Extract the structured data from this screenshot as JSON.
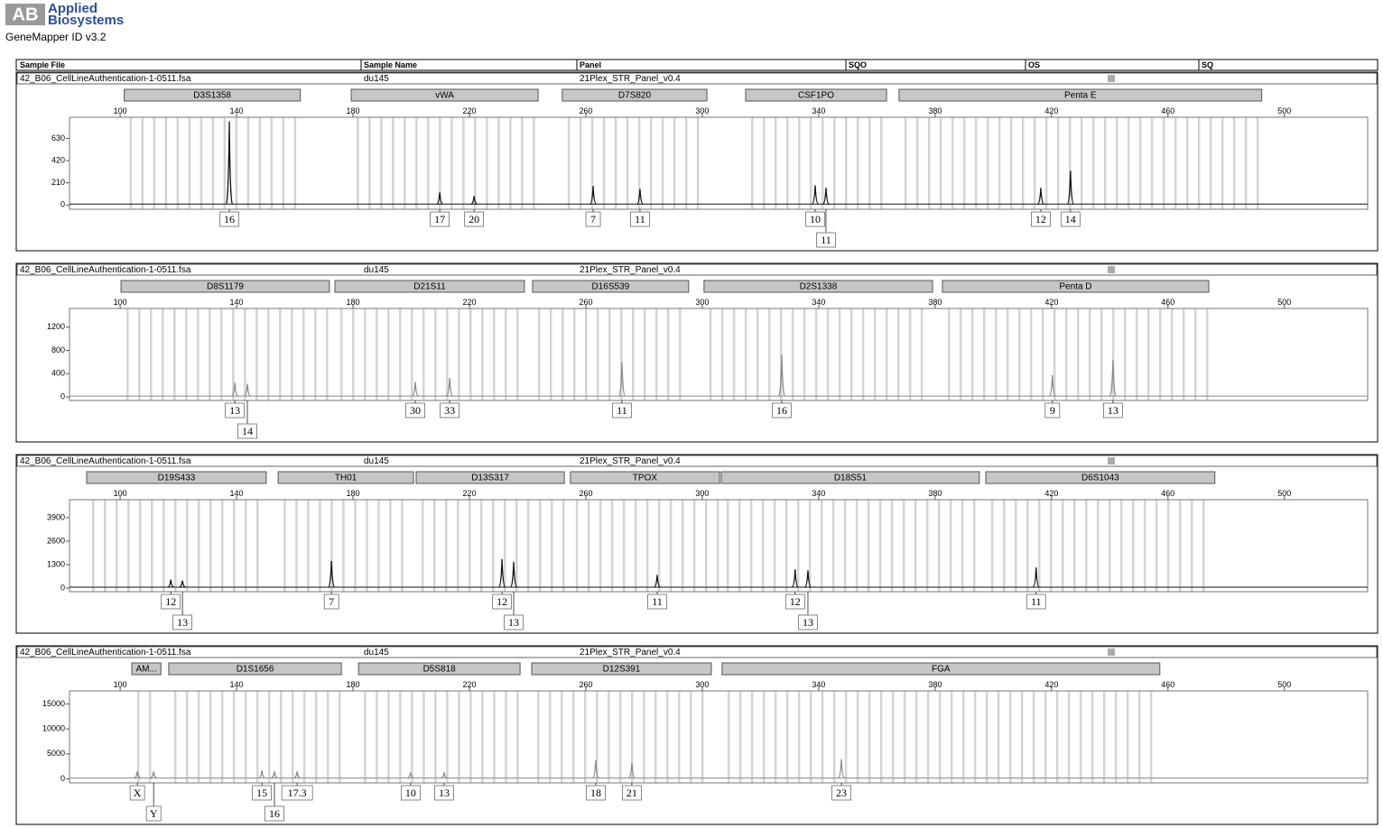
{
  "header": {
    "logo_mark": "AB",
    "logo_line1": "Applied",
    "logo_line2": "Biosystems",
    "app": "GeneMapper ID v3.2"
  },
  "columns": [
    "Sample File",
    "Sample Name",
    "Panel",
    "SQO",
    "OS",
    "SQ"
  ],
  "chart_data": [
    {
      "type": "electropherogram",
      "sample_file": "42_B06_CellLineAuthentication-1-0511.fsa",
      "sample_name": "du145",
      "panel": "21Plex_STR_Panel_v0.4",
      "color": "#111111",
      "markers": [
        {
          "name": "D3S1358",
          "range": [
            101.4,
            161.9
          ]
        },
        {
          "name": "vWA",
          "range": [
            179.4,
            243.6
          ]
        },
        {
          "name": "D7S820",
          "range": [
            251.9,
            301.6
          ]
        },
        {
          "name": "CSF1PO",
          "range": [
            314.9,
            363.3
          ]
        },
        {
          "name": "Penta E",
          "range": [
            367.6,
            492.2
          ]
        }
      ],
      "xlim": [
        82.6,
        528.6
      ],
      "xticks": [
        100,
        140,
        180,
        220,
        260,
        300,
        340,
        380,
        420,
        460,
        500
      ],
      "ylim": [
        -40,
        830
      ],
      "yticks": [
        0,
        210,
        420,
        630
      ],
      "labels": [
        "16",
        "17",
        "20",
        "7",
        "11",
        "10",
        "11",
        "12",
        "14"
      ],
      "x": [
        137.5,
        209.8,
        221.6,
        262.5,
        278.6,
        338.8,
        342.5,
        416.3,
        426.5
      ],
      "values": [
        790,
        119,
        85,
        179,
        153,
        187,
        162,
        162,
        324
      ]
    },
    {
      "type": "electropherogram",
      "sample_file": "42_B06_CellLineAuthentication-1-0511.fsa",
      "sample_name": "du145",
      "panel": "21Plex_STR_Panel_v0.4",
      "color": "#8a8a8a",
      "markers": [
        {
          "name": "D8S1179",
          "range": [
            100.3,
            171.9
          ]
        },
        {
          "name": "D21S11",
          "range": [
            173.8,
            238.9
          ]
        },
        {
          "name": "D16S539",
          "range": [
            241.7,
            295.3
          ]
        },
        {
          "name": "D2S1338",
          "range": [
            300.6,
            379.1
          ]
        },
        {
          "name": "Penta D",
          "range": [
            382.5,
            474.0
          ]
        }
      ],
      "xlim": [
        82.6,
        528.6
      ],
      "xticks": [
        100,
        140,
        180,
        220,
        260,
        300,
        340,
        380,
        420,
        460,
        500
      ],
      "ylim": [
        -60,
        1520
      ],
      "yticks": [
        0,
        400,
        800,
        1200
      ],
      "labels": [
        "13",
        "14",
        "30",
        "33",
        "11",
        "16",
        "9",
        "13"
      ],
      "x": [
        139.4,
        143.7,
        201.4,
        213.2,
        272.4,
        327.3,
        420.3,
        441.1
      ],
      "values": [
        243,
        227,
        259,
        324,
        600,
        730,
        373,
        632
      ]
    },
    {
      "type": "electropherogram",
      "sample_file": "42_B06_CellLineAuthentication-1-0511.fsa",
      "sample_name": "du145",
      "panel": "21Plex_STR_Panel_v0.4",
      "color": "#111111",
      "markers": [
        {
          "name": "D19S433",
          "range": [
            88.5,
            150.2
          ]
        },
        {
          "name": "TH01",
          "range": [
            154.3,
            200.8
          ]
        },
        {
          "name": "D13S317",
          "range": [
            201.7,
            252.6
          ]
        },
        {
          "name": "TPOX",
          "range": [
            254.7,
            305.9
          ]
        },
        {
          "name": "D18S51",
          "range": [
            306.5,
            395.2
          ]
        },
        {
          "name": "D6S1043",
          "range": [
            397.4,
            476.1
          ]
        }
      ],
      "xlim": [
        82.6,
        528.6
      ],
      "xticks": [
        100,
        140,
        180,
        220,
        260,
        300,
        340,
        380,
        420,
        460,
        500
      ],
      "ylim": [
        -200,
        4900
      ],
      "yticks": [
        0,
        1300,
        2600,
        3900
      ],
      "labels": [
        "12",
        "13",
        "7",
        "12",
        "13",
        "11",
        "12",
        "13",
        "11"
      ],
      "x": [
        117.4,
        121.4,
        172.6,
        231.2,
        235.2,
        284.5,
        331.9,
        336.3,
        414.7
      ],
      "values": [
        468,
        416,
        1508,
        1612,
        1456,
        728,
        1040,
        988,
        1144
      ]
    },
    {
      "type": "electropherogram",
      "sample_file": "42_B06_CellLineAuthentication-1-0511.fsa",
      "sample_name": "du145",
      "panel": "21Plex_STR_Panel_v0.4",
      "color": "#8a8a8a",
      "markers": [
        {
          "name": "AM...",
          "range": [
            104.0,
            114.0
          ]
        },
        {
          "name": "D1S1656",
          "range": [
            116.7,
            176.0
          ]
        },
        {
          "name": "D5S818",
          "range": [
            181.9,
            237.4
          ]
        },
        {
          "name": "D12S391",
          "range": [
            241.4,
            303.1
          ]
        },
        {
          "name": "FGA",
          "range": [
            306.8,
            457.2
          ]
        }
      ],
      "xlim": [
        82.6,
        528.6
      ],
      "xticks": [
        100,
        140,
        180,
        220,
        260,
        300,
        340,
        380,
        420,
        460,
        500
      ],
      "ylim": [
        -800,
        17600
      ],
      "yticks": [
        0,
        5000,
        10000,
        15000
      ],
      "labels": [
        "X",
        "Y",
        "15",
        "16",
        "17.3",
        "10",
        "13",
        "18",
        "21",
        "23"
      ],
      "x": [
        105.9,
        111.5,
        148.7,
        153.0,
        160.8,
        199.8,
        211.3,
        263.4,
        275.8,
        347.8
      ],
      "values": [
        1500,
        1500,
        1690,
        1500,
        1500,
        1310,
        1310,
        3750,
        3190,
        3940
      ]
    }
  ]
}
